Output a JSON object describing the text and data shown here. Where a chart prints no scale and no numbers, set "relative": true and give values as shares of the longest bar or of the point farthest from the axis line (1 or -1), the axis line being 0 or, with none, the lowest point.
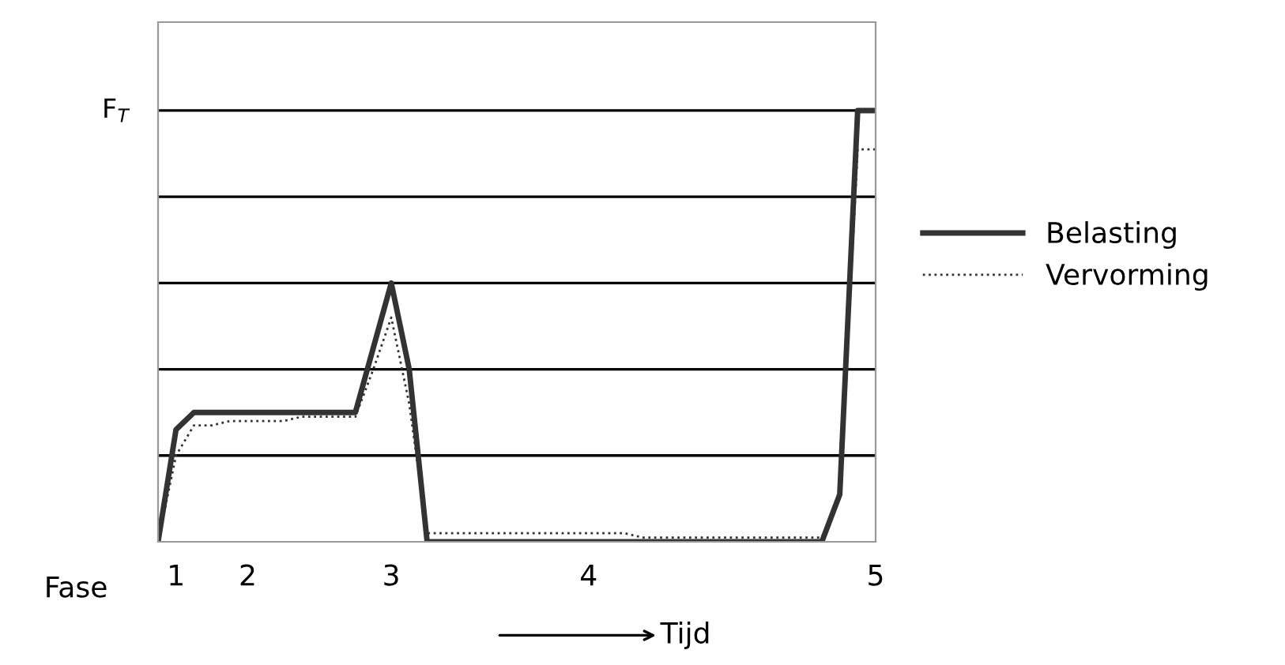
{
  "chart_data": {
    "type": "line",
    "relative": true,
    "xlabel": "Fase",
    "categories": [
      null,
      "1",
      null,
      null,
      null,
      "2",
      null,
      null,
      null,
      null,
      null,
      null,
      null,
      "3",
      null,
      null,
      null,
      null,
      null,
      null,
      null,
      null,
      null,
      null,
      "4",
      null,
      null,
      null,
      null,
      null,
      null,
      null,
      null,
      null,
      null,
      null,
      null,
      null,
      null,
      null,
      "5"
    ],
    "tick_labels": "x",
    "series": [
      {
        "name": "Belasting",
        "color": "#333333",
        "line_style": "solid",
        "values": [
          0,
          0.26,
          0.3,
          0.3,
          0.3,
          0.3,
          0.3,
          0.3,
          0.3,
          0.3,
          0.3,
          0.3,
          0.45,
          0.6,
          0.4,
          0,
          0,
          0,
          0,
          0,
          0,
          0,
          0,
          0,
          0,
          0,
          0,
          0,
          0,
          0,
          0,
          0,
          0,
          0,
          0,
          0,
          0,
          0,
          0.11,
          1.0,
          1.0
        ]
      },
      {
        "name": "Vervorming",
        "color": "#333333",
        "line_style": "dotted",
        "values": [
          0,
          0.2,
          0.27,
          0.27,
          0.28,
          0.28,
          0.28,
          0.28,
          0.29,
          0.29,
          0.29,
          0.29,
          0.4,
          0.52,
          0.32,
          0.02,
          0.02,
          0.02,
          0.02,
          0.02,
          0.02,
          0.02,
          0.02,
          0.02,
          0.02,
          0.02,
          0.02,
          0.01,
          0.01,
          0.01,
          0.01,
          0.01,
          0.01,
          0.01,
          0.01,
          0.01,
          0.01,
          0.01,
          0.1,
          0.91,
          0.91
        ]
      }
    ],
    "ref_lines": [
      {
        "axis": "y",
        "value": 0.2,
        "label": null,
        "color": "#000000"
      },
      {
        "axis": "y",
        "value": 0.4,
        "label": null,
        "color": "#000000"
      },
      {
        "axis": "y",
        "value": 0.6,
        "label": null,
        "color": "#000000"
      },
      {
        "axis": "y",
        "value": 0.8,
        "label": null,
        "color": "#000000"
      },
      {
        "axis": "y",
        "value": 1.0,
        "label": "F$_{T}$",
        "color": "#000000"
      }
    ],
    "annotations": [
      "Tijd"
    ],
    "legend": "right"
  }
}
